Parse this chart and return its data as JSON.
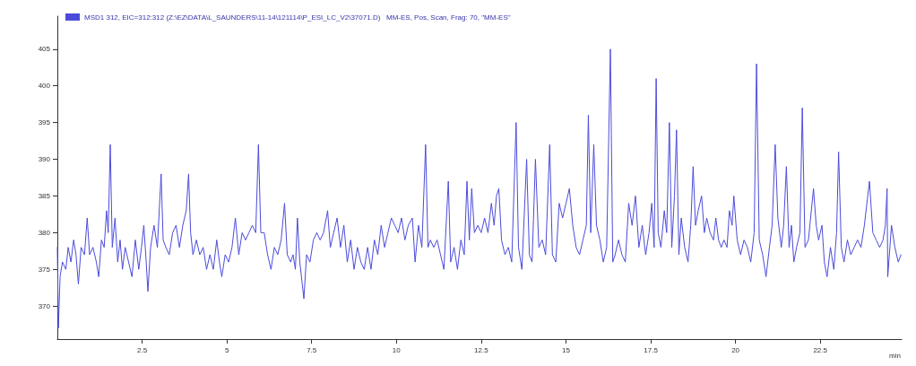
{
  "chart_data": {
    "type": "line",
    "xlabel": "min",
    "legend": "top left",
    "grid": false,
    "marker": "none",
    "line_style": "solid",
    "xlim": [
      0,
      24.9
    ],
    "ylim": [
      365.5,
      409.5
    ],
    "xticks": [
      2.5,
      5,
      7.5,
      10,
      12.5,
      15,
      17.5,
      20,
      22.5
    ],
    "yticks": [
      370,
      375,
      380,
      385,
      390,
      395,
      400,
      405
    ],
    "series": [
      {
        "name": "MSD1 312, EIC=312:312 (Z:\\EZ\\DATA\\L_SAUNDERS\\11-14\\121114\\P_ESI_LC_V2\\37071.D)   MM-ES, Pos, Scan, Frag: 70, \"MM-ES\"",
        "color": "#4b4bdb",
        "x": [
          0,
          0.03,
          0.08,
          0.15,
          0.25,
          0.32,
          0.4,
          0.48,
          0.55,
          0.62,
          0.7,
          0.8,
          0.88,
          0.95,
          1.05,
          1.15,
          1.22,
          1.3,
          1.38,
          1.45,
          1.5,
          1.56,
          1.62,
          1.7,
          1.78,
          1.85,
          1.92,
          2.0,
          2.1,
          2.2,
          2.3,
          2.4,
          2.48,
          2.55,
          2.62,
          2.67,
          2.75,
          2.85,
          2.95,
          3.06,
          3.12,
          3.2,
          3.3,
          3.4,
          3.5,
          3.6,
          3.7,
          3.8,
          3.87,
          3.93,
          4.0,
          4.1,
          4.2,
          4.3,
          4.4,
          4.5,
          4.6,
          4.7,
          4.78,
          4.85,
          4.95,
          5.05,
          5.15,
          5.25,
          5.35,
          5.45,
          5.55,
          5.65,
          5.75,
          5.85,
          5.93,
          6.0,
          6.1,
          6.2,
          6.3,
          6.4,
          6.5,
          6.6,
          6.7,
          6.78,
          6.88,
          6.95,
          7.02,
          7.08,
          7.15,
          7.27,
          7.35,
          7.45,
          7.55,
          7.65,
          7.75,
          7.85,
          7.97,
          8.05,
          8.15,
          8.25,
          8.35,
          8.45,
          8.55,
          8.65,
          8.75,
          8.85,
          8.95,
          9.05,
          9.15,
          9.25,
          9.35,
          9.45,
          9.55,
          9.65,
          9.75,
          9.85,
          9.95,
          10.05,
          10.15,
          10.25,
          10.35,
          10.47,
          10.55,
          10.65,
          10.75,
          10.86,
          10.93,
          11.0,
          11.1,
          11.2,
          11.3,
          11.4,
          11.53,
          11.6,
          11.7,
          11.8,
          11.9,
          12.0,
          12.08,
          12.15,
          12.22,
          12.3,
          12.4,
          12.5,
          12.6,
          12.7,
          12.8,
          12.88,
          12.95,
          13.02,
          13.1,
          13.2,
          13.3,
          13.4,
          13.53,
          13.6,
          13.7,
          13.84,
          13.92,
          14.0,
          14.1,
          14.2,
          14.3,
          14.4,
          14.52,
          14.6,
          14.7,
          14.8,
          14.9,
          15.0,
          15.1,
          15.2,
          15.3,
          15.4,
          15.5,
          15.6,
          15.66,
          15.73,
          15.82,
          15.9,
          16.0,
          16.1,
          16.2,
          16.31,
          16.38,
          16.45,
          16.55,
          16.65,
          16.75,
          16.85,
          16.95,
          17.05,
          17.15,
          17.25,
          17.35,
          17.45,
          17.53,
          17.6,
          17.66,
          17.72,
          17.8,
          17.9,
          17.97,
          18.05,
          18.12,
          18.2,
          18.26,
          18.33,
          18.4,
          18.5,
          18.6,
          18.68,
          18.75,
          18.82,
          18.9,
          19.0,
          19.08,
          19.15,
          19.25,
          19.35,
          19.42,
          19.5,
          19.58,
          19.66,
          19.75,
          19.82,
          19.9,
          19.95,
          20.05,
          20.15,
          20.25,
          20.35,
          20.45,
          20.55,
          20.62,
          20.7,
          20.8,
          20.9,
          21.0,
          21.08,
          21.17,
          21.25,
          21.35,
          21.42,
          21.5,
          21.58,
          21.65,
          21.72,
          21.8,
          21.9,
          21.97,
          22.05,
          22.15,
          22.3,
          22.38,
          22.45,
          22.55,
          22.62,
          22.7,
          22.8,
          22.9,
          22.98,
          23.04,
          23.12,
          23.2,
          23.3,
          23.4,
          23.5,
          23.6,
          23.7,
          23.8,
          23.95,
          24.05,
          24.15,
          24.25,
          24.35,
          24.42,
          24.47,
          24.49,
          24.6,
          24.7,
          24.8,
          24.88
        ],
        "values": [
          378,
          367,
          374,
          376,
          375,
          378,
          376,
          379,
          377,
          373,
          378,
          377,
          382,
          377,
          378,
          376,
          374,
          379,
          378,
          383,
          380,
          392,
          378,
          382,
          376,
          379,
          375,
          378,
          376,
          374,
          379,
          375,
          378,
          381,
          376,
          372,
          378,
          381,
          378,
          388,
          379,
          378,
          377,
          380,
          381,
          378,
          381,
          383,
          388,
          380,
          377,
          379,
          377,
          378,
          375,
          377,
          375,
          379,
          376,
          374,
          377,
          376,
          378,
          382,
          377,
          380,
          379,
          380,
          381,
          380,
          392,
          380,
          380,
          377,
          375,
          378,
          377,
          379,
          384,
          377,
          376,
          377,
          375,
          382,
          376,
          371,
          377,
          376,
          379,
          380,
          379,
          380,
          383,
          378,
          380,
          382,
          378,
          381,
          376,
          379,
          375,
          378,
          376,
          375,
          378,
          375,
          379,
          377,
          381,
          378,
          380,
          382,
          381,
          380,
          382,
          379,
          381,
          382,
          376,
          381,
          378,
          392,
          378,
          379,
          378,
          379,
          377,
          375,
          387,
          376,
          378,
          375,
          379,
          377,
          387,
          379,
          386,
          380,
          381,
          380,
          382,
          380,
          384,
          381,
          385,
          386,
          379,
          377,
          378,
          376,
          395,
          378,
          375,
          390,
          377,
          376,
          390,
          378,
          379,
          377,
          392,
          377,
          376,
          384,
          382,
          384,
          386,
          381,
          378,
          377,
          379,
          381,
          396,
          380,
          392,
          381,
          379,
          376,
          378,
          405,
          376,
          377,
          379,
          377,
          376,
          384,
          381,
          385,
          378,
          381,
          377,
          380,
          384,
          378,
          401,
          380,
          378,
          383,
          380,
          395,
          378,
          385,
          394,
          377,
          382,
          378,
          376,
          381,
          389,
          381,
          383,
          385,
          380,
          382,
          380,
          379,
          382,
          379,
          378,
          379,
          378,
          383,
          381,
          385,
          379,
          377,
          379,
          378,
          376,
          380,
          403,
          379,
          377,
          374,
          378,
          381,
          392,
          382,
          378,
          381,
          389,
          378,
          381,
          376,
          378,
          380,
          397,
          378,
          379,
          386,
          381,
          379,
          381,
          376,
          374,
          378,
          375,
          380,
          391,
          378,
          376,
          379,
          377,
          378,
          379,
          378,
          381,
          387,
          380,
          379,
          378,
          379,
          381,
          386,
          374,
          381,
          378,
          376,
          377
        ]
      }
    ]
  }
}
